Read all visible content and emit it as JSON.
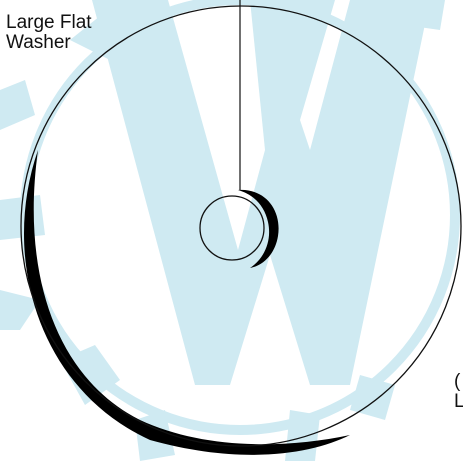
{
  "diagram": {
    "label_top_left": {
      "line1": "Large Flat",
      "line2": "Washer"
    },
    "label_bottom_right_partial": {
      "line1": "(",
      "line2": "L"
    },
    "colors": {
      "line": "#111111",
      "shadow": "#000000",
      "watermark": "#cfeaf2",
      "background": "#ffffff"
    },
    "watermark_icon": "gear-and-w-logo-watermark"
  }
}
